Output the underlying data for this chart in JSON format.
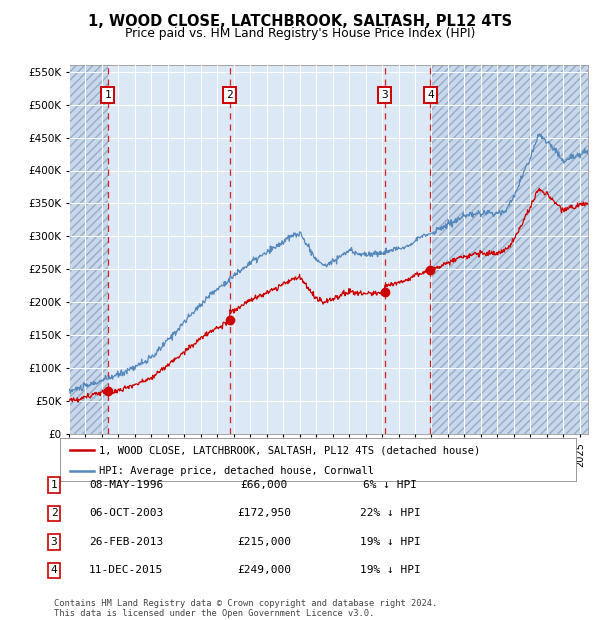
{
  "title1": "1, WOOD CLOSE, LATCHBROOK, SALTASH, PL12 4TS",
  "title2": "Price paid vs. HM Land Registry's House Price Index (HPI)",
  "red_label": "1, WOOD CLOSE, LATCHBROOK, SALTASH, PL12 4TS (detached house)",
  "blue_label": "HPI: Average price, detached house, Cornwall",
  "sale_points": [
    {
      "num": 1,
      "date_str": "08-MAY-1996",
      "year": 1996.36,
      "price": 66000,
      "pct": "6%",
      "dir": "↓"
    },
    {
      "num": 2,
      "date_str": "06-OCT-2003",
      "year": 2003.76,
      "price": 172950,
      "pct": "22%",
      "dir": "↓"
    },
    {
      "num": 3,
      "date_str": "26-FEB-2013",
      "year": 2013.15,
      "price": 215000,
      "pct": "19%",
      "dir": "↓"
    },
    {
      "num": 4,
      "date_str": "11-DEC-2015",
      "year": 2015.94,
      "price": 249000,
      "pct": "19%",
      "dir": "↓"
    }
  ],
  "footer": "Contains HM Land Registry data © Crown copyright and database right 2024.\nThis data is licensed under the Open Government Licence v3.0.",
  "red_color": "#cc0000",
  "blue_color": "#5588bb",
  "ylim": [
    0,
    560000
  ],
  "xlim_start": 1994.0,
  "xlim_end": 2025.5,
  "plot_bg": "#dce8f5",
  "hatch_bg": "#c8d8ec"
}
